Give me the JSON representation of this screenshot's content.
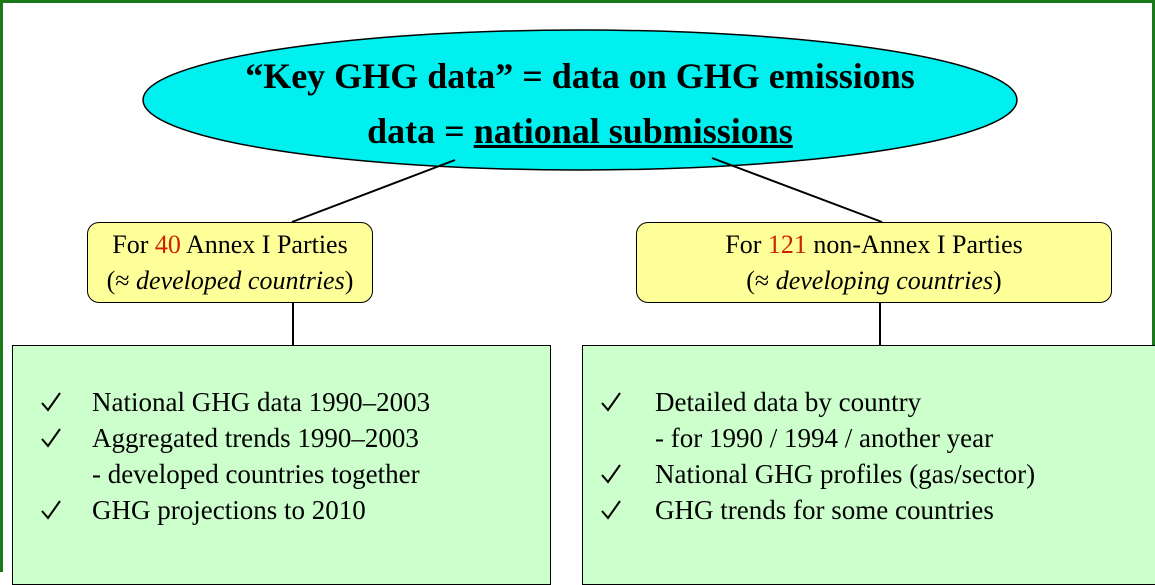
{
  "header": {
    "line1": "“Key GHG data” = data on GHG emissions",
    "line2_prefix": "data = ",
    "line2_underlined": "national submissions"
  },
  "groups": [
    {
      "prefix": "For ",
      "count": 40,
      "suffix": " Annex I Parties",
      "note_open": "(≈ ",
      "note": "developed countries",
      "note_close": ")",
      "items": [
        {
          "text": "National GHG data 1990–2003"
        },
        {
          "text": "Aggregated trends 1990–2003",
          "sub": "- developed countries together"
        },
        {
          "text": "GHG projections to 2010"
        }
      ]
    },
    {
      "prefix": "For ",
      "count": 121,
      "suffix": " non-Annex I Parties",
      "note_open": "(≈ ",
      "note": "developing countries",
      "note_close": ")",
      "items": [
        {
          "text": "Detailed data by country",
          "sub": "- for 1990 / 1994 / another year"
        },
        {
          "text": "National GHG profiles (gas/sector)"
        },
        {
          "text": "GHG trends for some countries"
        }
      ]
    }
  ]
}
